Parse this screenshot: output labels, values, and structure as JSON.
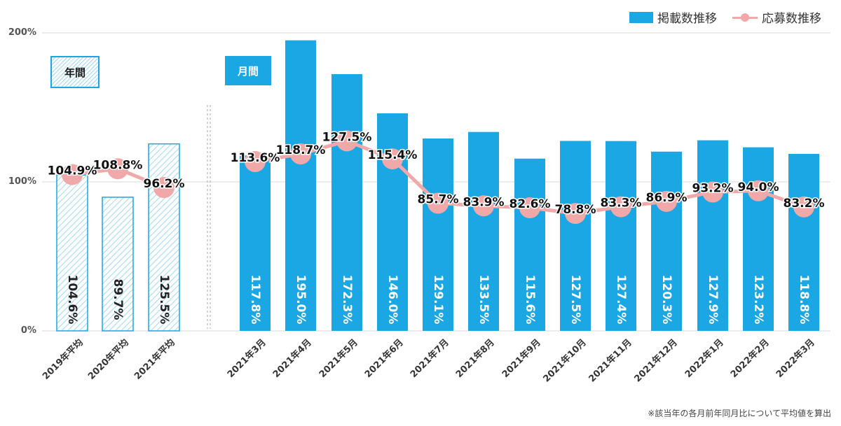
{
  "legend": {
    "bar_label": "掲載数推移",
    "line_label": "応募数推移"
  },
  "sections": {
    "annual_label": "年間",
    "monthly_label": "月間"
  },
  "footnote": "※該当年の各月前年同月比について平均値を算出",
  "colors": {
    "bar": "#1aa7e3",
    "bar_hatch": "#9fd8ef",
    "line": "#f0a8a8"
  },
  "chart_data": {
    "type": "bar",
    "categories": [
      "2019年平均",
      "2020年平均",
      "2021年平均",
      "2021年3月",
      "2021年4月",
      "2021年5月",
      "2021年6月",
      "2021年7月",
      "2021年8月",
      "2021年9月",
      "2021年10月",
      "2021年11月",
      "2021年12月",
      "2022年1月",
      "2022年2月",
      "2022年3月"
    ],
    "y_ticks": [
      "0%",
      "100%",
      "200%"
    ],
    "ylim": [
      0,
      200
    ],
    "grid": true,
    "legend_position": "top-right",
    "series": [
      {
        "name": "掲載数推移",
        "type": "bar",
        "values": [
          104.6,
          89.7,
          125.5,
          117.8,
          195.0,
          172.3,
          146.0,
          129.1,
          133.5,
          115.6,
          127.5,
          127.4,
          120.3,
          127.9,
          123.2,
          118.8
        ],
        "labels": [
          "104.6%",
          "89.7%",
          "125.5%",
          "117.8%",
          "195.0%",
          "172.3%",
          "146.0%",
          "129.1%",
          "133.5%",
          "115.6%",
          "127.5%",
          "127.4%",
          "120.3%",
          "127.9%",
          "123.2%",
          "118.8%"
        ]
      },
      {
        "name": "応募数推移",
        "type": "line",
        "values": [
          104.9,
          108.8,
          96.2,
          113.6,
          118.7,
          127.5,
          115.4,
          85.7,
          83.9,
          82.6,
          78.8,
          83.3,
          86.9,
          93.2,
          94.0,
          83.2
        ],
        "labels": [
          "104.9%",
          "108.8%",
          "96.2%",
          "113.6%",
          "118.7%",
          "127.5%",
          "115.4%",
          "85.7%",
          "83.9%",
          "82.6%",
          "78.8%",
          "83.3%",
          "86.9%",
          "93.2%",
          "94.0%",
          "83.2%"
        ]
      }
    ]
  }
}
